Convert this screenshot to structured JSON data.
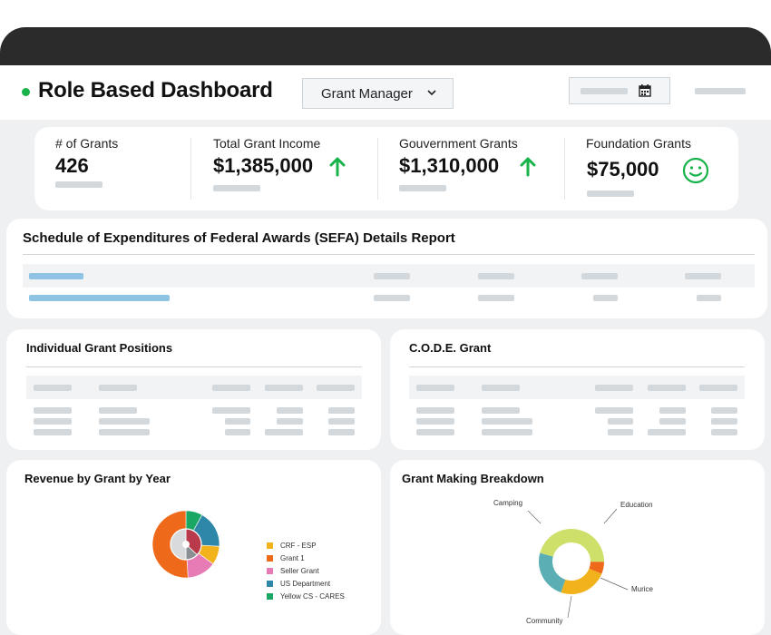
{
  "header": {
    "title": "Role Based Dashboard",
    "role_select": {
      "selected": "Grant Manager"
    }
  },
  "stats": [
    {
      "label": "# of Grants",
      "value": "426",
      "indicator": "none"
    },
    {
      "label": "Total Grant Income",
      "value": "$1,385,000",
      "indicator": "arrow-up-icon"
    },
    {
      "label": "Gouvernment Grants",
      "value": "$1,310,000",
      "indicator": "arrow-up-icon"
    },
    {
      "label": "Foundation Grants",
      "value": "$75,000",
      "indicator": "smiley-icon"
    }
  ],
  "colors": {
    "accent_green": "#18b34a",
    "skeleton": "#d3d8dc",
    "link_blue": "#8ec3e3"
  },
  "sefa": {
    "title": "Schedule of Expenditures of Federal Awards (SEFA) Details Report"
  },
  "individual_positions": {
    "title": "Individual Grant Positions"
  },
  "code_grant": {
    "title": "C.O.D.E. Grant"
  },
  "revenue": {
    "title": "Revenue by Grant by Year",
    "legend": [
      {
        "name": "CRF - ESP",
        "color": "#f2b21b"
      },
      {
        "name": "Grant 1",
        "color": "#ee6a1a"
      },
      {
        "name": "Seller Grant",
        "color": "#e77bb5"
      },
      {
        "name": "US Department",
        "color": "#2e86a8"
      },
      {
        "name": "Yellow CS - CARES",
        "color": "#1aa764"
      }
    ]
  },
  "breakdown": {
    "title": "Grant Making Breakdown",
    "labels": [
      "Camping",
      "Education",
      "Murice",
      "Community"
    ]
  },
  "chart_data": [
    {
      "type": "pie",
      "title": "Revenue by Grant by Year",
      "categories": [
        "Yellow CS - CARES",
        "US Department",
        "CRF - ESP",
        "Seller Grant",
        "Grant 1"
      ],
      "values": [
        8,
        18,
        9,
        14,
        51
      ],
      "inner_values": [
        37,
        13,
        50
      ],
      "legend": "right"
    },
    {
      "type": "pie",
      "title": "Grant Making Breakdown",
      "categories": [
        "Camping",
        "Education",
        "Murice",
        "Community"
      ],
      "values": [
        46,
        6,
        24,
        24
      ],
      "donut": true,
      "legend": "callouts"
    }
  ]
}
